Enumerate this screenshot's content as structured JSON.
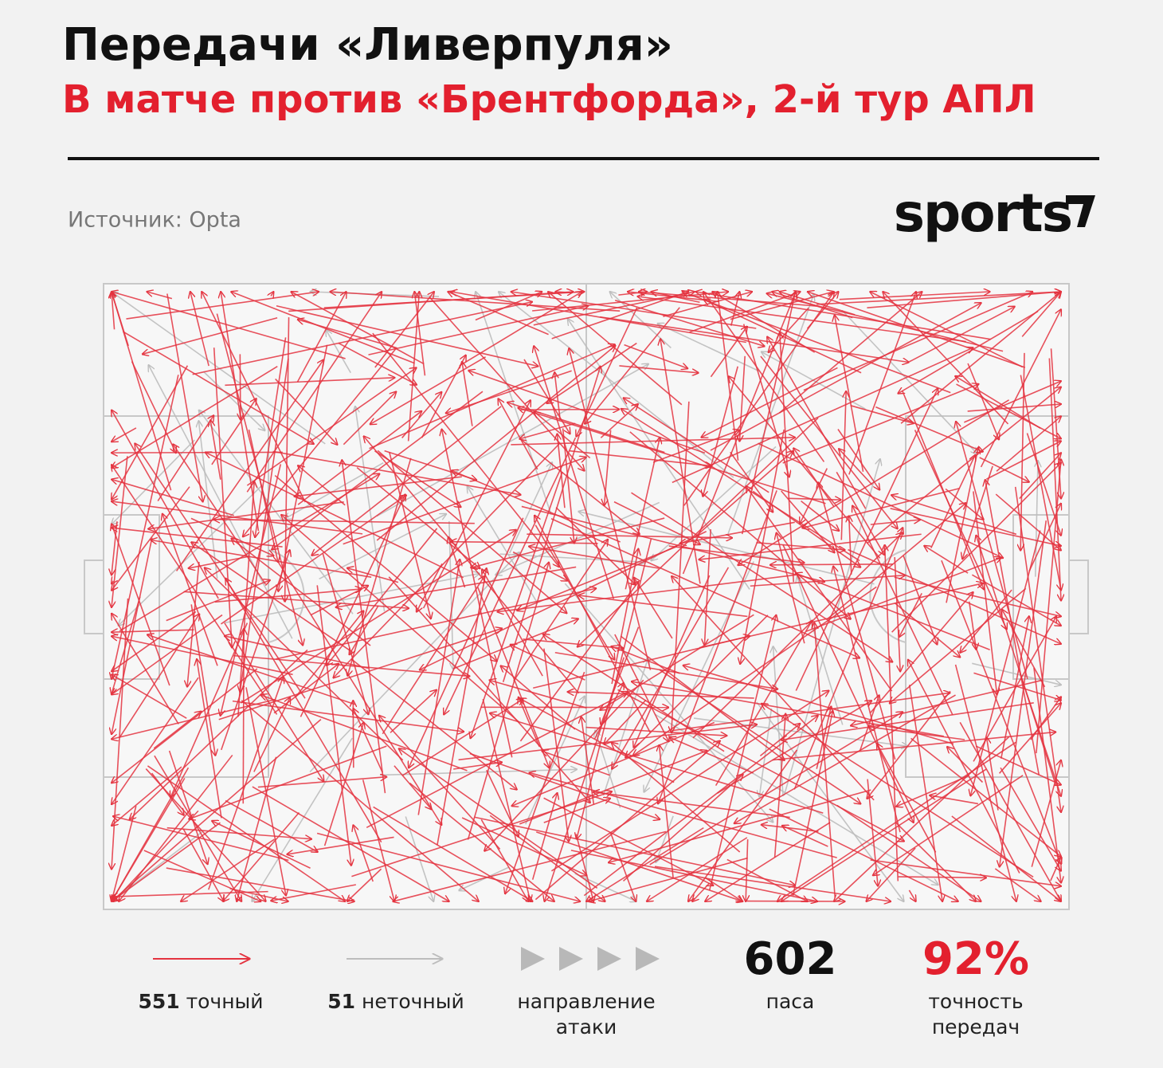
{
  "header": {
    "title": "Передачи «Ливерпуля»",
    "subtitle": "В матче против «Брентфорда», 2-й тур АПЛ"
  },
  "source": "Источник: Opta",
  "logo": "sports",
  "legend": {
    "accurate": {
      "count": "551",
      "label": "точный"
    },
    "inaccurate": {
      "count": "51",
      "label": "неточный"
    },
    "direction": [
      "направление",
      "атаки"
    ],
    "total": {
      "value": "602",
      "label": "паса"
    },
    "accuracy": {
      "value": "92%",
      "label": [
        "точность",
        "передач"
      ]
    }
  }
}
